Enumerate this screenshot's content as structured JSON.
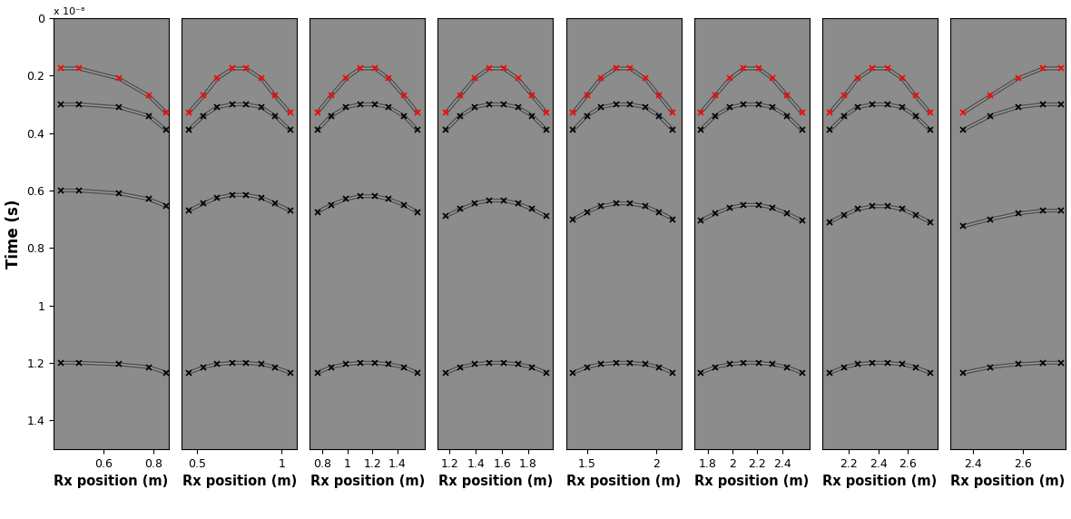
{
  "chart_data": [
    {
      "type": "scatter",
      "y_label": "Time (s)",
      "x_label": "Rx position (m)",
      "annotations": [
        "x 10⁻⁸"
      ],
      "xlim": [
        0.4,
        0.86
      ],
      "xticks": [
        0.6,
        0.8
      ],
      "ylim": [
        1.5,
        0
      ],
      "yticks": [
        0,
        0.2,
        0.4,
        0.6,
        0.8,
        1,
        1.2,
        1.4
      ],
      "series": [
        {
          "color": "#ff0000",
          "marker": "x",
          "x": [
            0.43,
            0.5,
            0.66,
            0.78,
            0.85
          ],
          "values": [
            0.175,
            0.175,
            0.21,
            0.27,
            0.33
          ]
        },
        {
          "color": "#000000",
          "marker": "x",
          "x": [
            0.43,
            0.5,
            0.66,
            0.78,
            0.85
          ],
          "values": [
            0.3,
            0.3,
            0.31,
            0.34,
            0.39
          ]
        },
        {
          "color": "#000000",
          "marker": "x",
          "x": [
            0.43,
            0.5,
            0.66,
            0.78,
            0.85
          ],
          "values": [
            0.6,
            0.6,
            0.61,
            0.63,
            0.655
          ]
        },
        {
          "color": "#000000",
          "marker": "x",
          "x": [
            0.43,
            0.5,
            0.66,
            0.78,
            0.85
          ],
          "values": [
            1.2,
            1.2,
            1.205,
            1.215,
            1.235
          ]
        }
      ]
    },
    {
      "type": "scatter",
      "x_label": "Rx position (m)",
      "tick_labels": "x",
      "xlim": [
        0.41,
        1.09
      ],
      "xticks": [
        0.5,
        1
      ],
      "ylim": [
        1.5,
        0
      ],
      "series": [
        {
          "color": "#ff0000",
          "marker": "x",
          "x": [
            0.45,
            0.54,
            0.62,
            0.71,
            0.79,
            0.88,
            0.96,
            1.05
          ],
          "values": [
            0.33,
            0.27,
            0.21,
            0.175,
            0.175,
            0.21,
            0.27,
            0.33
          ]
        },
        {
          "color": "#000000",
          "marker": "x",
          "x": [
            0.45,
            0.54,
            0.62,
            0.71,
            0.79,
            0.88,
            0.96,
            1.05
          ],
          "values": [
            0.39,
            0.34,
            0.31,
            0.3,
            0.3,
            0.31,
            0.34,
            0.39
          ]
        },
        {
          "color": "#000000",
          "marker": "x",
          "x": [
            0.45,
            0.54,
            0.62,
            0.71,
            0.79,
            0.88,
            0.96,
            1.05
          ],
          "values": [
            0.67,
            0.645,
            0.625,
            0.615,
            0.615,
            0.625,
            0.645,
            0.67
          ]
        },
        {
          "color": "#000000",
          "marker": "x",
          "x": [
            0.45,
            0.54,
            0.62,
            0.71,
            0.79,
            0.88,
            0.96,
            1.05
          ],
          "values": [
            1.235,
            1.215,
            1.205,
            1.2,
            1.2,
            1.205,
            1.215,
            1.235
          ]
        }
      ]
    },
    {
      "type": "scatter",
      "x_label": "Rx position (m)",
      "tick_labels": "x",
      "xlim": [
        0.7,
        1.62
      ],
      "xticks": [
        0.8,
        1,
        1.2,
        1.4
      ],
      "ylim": [
        1.5,
        0
      ],
      "series": [
        {
          "color": "#ff0000",
          "marker": "x",
          "x": [
            0.76,
            0.87,
            0.99,
            1.1,
            1.22,
            1.33,
            1.45,
            1.56
          ],
          "values": [
            0.33,
            0.27,
            0.21,
            0.175,
            0.175,
            0.21,
            0.27,
            0.33
          ]
        },
        {
          "color": "#000000",
          "marker": "x",
          "x": [
            0.76,
            0.87,
            0.99,
            1.1,
            1.22,
            1.33,
            1.45,
            1.56
          ],
          "values": [
            0.39,
            0.34,
            0.31,
            0.3,
            0.3,
            0.31,
            0.34,
            0.39
          ]
        },
        {
          "color": "#000000",
          "marker": "x",
          "x": [
            0.76,
            0.87,
            0.99,
            1.1,
            1.22,
            1.33,
            1.45,
            1.56
          ],
          "values": [
            0.675,
            0.65,
            0.63,
            0.62,
            0.62,
            0.63,
            0.65,
            0.675
          ]
        },
        {
          "color": "#000000",
          "marker": "x",
          "x": [
            0.76,
            0.87,
            0.99,
            1.1,
            1.22,
            1.33,
            1.45,
            1.56
          ],
          "values": [
            1.235,
            1.215,
            1.205,
            1.2,
            1.2,
            1.205,
            1.215,
            1.235
          ]
        }
      ]
    },
    {
      "type": "scatter",
      "x_label": "Rx position (m)",
      "tick_labels": "x",
      "xlim": [
        1.11,
        1.99
      ],
      "xticks": [
        1.2,
        1.4,
        1.6,
        1.8
      ],
      "ylim": [
        1.5,
        0
      ],
      "series": [
        {
          "color": "#ff0000",
          "marker": "x",
          "x": [
            1.17,
            1.28,
            1.39,
            1.5,
            1.61,
            1.72,
            1.83,
            1.94
          ],
          "values": [
            0.33,
            0.27,
            0.21,
            0.175,
            0.175,
            0.21,
            0.27,
            0.33
          ]
        },
        {
          "color": "#000000",
          "marker": "x",
          "x": [
            1.17,
            1.28,
            1.39,
            1.5,
            1.61,
            1.72,
            1.83,
            1.94
          ],
          "values": [
            0.39,
            0.34,
            0.31,
            0.3,
            0.3,
            0.31,
            0.34,
            0.39
          ]
        },
        {
          "color": "#000000",
          "marker": "x",
          "x": [
            1.17,
            1.28,
            1.39,
            1.5,
            1.61,
            1.72,
            1.83,
            1.94
          ],
          "values": [
            0.69,
            0.665,
            0.645,
            0.635,
            0.635,
            0.645,
            0.665,
            0.69
          ]
        },
        {
          "color": "#000000",
          "marker": "x",
          "x": [
            1.17,
            1.28,
            1.39,
            1.5,
            1.61,
            1.72,
            1.83,
            1.94
          ],
          "values": [
            1.235,
            1.215,
            1.205,
            1.2,
            1.2,
            1.205,
            1.215,
            1.235
          ]
        }
      ]
    },
    {
      "type": "scatter",
      "x_label": "Rx position (m)",
      "tick_labels": "x",
      "xlim": [
        1.35,
        2.18
      ],
      "xticks": [
        1.5,
        2
      ],
      "ylim": [
        1.5,
        0
      ],
      "series": [
        {
          "color": "#ff0000",
          "marker": "x",
          "x": [
            1.4,
            1.5,
            1.6,
            1.71,
            1.81,
            1.92,
            2.02,
            2.12
          ],
          "values": [
            0.33,
            0.27,
            0.21,
            0.175,
            0.175,
            0.21,
            0.27,
            0.33
          ]
        },
        {
          "color": "#000000",
          "marker": "x",
          "x": [
            1.4,
            1.5,
            1.6,
            1.71,
            1.81,
            1.92,
            2.02,
            2.12
          ],
          "values": [
            0.39,
            0.34,
            0.31,
            0.3,
            0.3,
            0.31,
            0.34,
            0.39
          ]
        },
        {
          "color": "#000000",
          "marker": "x",
          "x": [
            1.4,
            1.5,
            1.6,
            1.71,
            1.81,
            1.92,
            2.02,
            2.12
          ],
          "values": [
            0.7,
            0.675,
            0.655,
            0.645,
            0.645,
            0.655,
            0.675,
            0.7
          ]
        },
        {
          "color": "#000000",
          "marker": "x",
          "x": [
            1.4,
            1.5,
            1.6,
            1.71,
            1.81,
            1.92,
            2.02,
            2.12
          ],
          "values": [
            1.235,
            1.215,
            1.205,
            1.2,
            1.2,
            1.205,
            1.215,
            1.235
          ]
        }
      ]
    },
    {
      "type": "scatter",
      "x_label": "Rx position (m)",
      "tick_labels": "x",
      "xlim": [
        1.69,
        2.62
      ],
      "xticks": [
        1.8,
        2,
        2.2,
        2.4
      ],
      "ylim": [
        1.5,
        0
      ],
      "series": [
        {
          "color": "#ff0000",
          "marker": "x",
          "x": [
            1.74,
            1.86,
            1.98,
            2.09,
            2.21,
            2.32,
            2.44,
            2.56
          ],
          "values": [
            0.33,
            0.27,
            0.21,
            0.175,
            0.175,
            0.21,
            0.27,
            0.33
          ]
        },
        {
          "color": "#000000",
          "marker": "x",
          "x": [
            1.74,
            1.86,
            1.98,
            2.09,
            2.21,
            2.32,
            2.44,
            2.56
          ],
          "values": [
            0.39,
            0.34,
            0.31,
            0.3,
            0.3,
            0.31,
            0.34,
            0.39
          ]
        },
        {
          "color": "#000000",
          "marker": "x",
          "x": [
            1.74,
            1.86,
            1.98,
            2.09,
            2.21,
            2.32,
            2.44,
            2.56
          ],
          "values": [
            0.705,
            0.68,
            0.66,
            0.65,
            0.65,
            0.66,
            0.68,
            0.705
          ]
        },
        {
          "color": "#000000",
          "marker": "x",
          "x": [
            1.74,
            1.86,
            1.98,
            2.09,
            2.21,
            2.32,
            2.44,
            2.56
          ],
          "values": [
            1.235,
            1.215,
            1.205,
            1.2,
            1.2,
            1.205,
            1.215,
            1.235
          ]
        }
      ]
    },
    {
      "type": "scatter",
      "x_label": "Rx position (m)",
      "tick_labels": "x",
      "xlim": [
        2.02,
        2.8
      ],
      "xticks": [
        2.2,
        2.4,
        2.6
      ],
      "ylim": [
        1.5,
        0
      ],
      "series": [
        {
          "color": "#ff0000",
          "marker": "x",
          "x": [
            2.07,
            2.17,
            2.26,
            2.36,
            2.46,
            2.56,
            2.65,
            2.75
          ],
          "values": [
            0.33,
            0.27,
            0.21,
            0.175,
            0.175,
            0.21,
            0.27,
            0.33
          ]
        },
        {
          "color": "#000000",
          "marker": "x",
          "x": [
            2.07,
            2.17,
            2.26,
            2.36,
            2.46,
            2.56,
            2.65,
            2.75
          ],
          "values": [
            0.39,
            0.34,
            0.31,
            0.3,
            0.3,
            0.31,
            0.34,
            0.39
          ]
        },
        {
          "color": "#000000",
          "marker": "x",
          "x": [
            2.07,
            2.17,
            2.26,
            2.36,
            2.46,
            2.56,
            2.65,
            2.75
          ],
          "values": [
            0.71,
            0.685,
            0.665,
            0.655,
            0.655,
            0.665,
            0.685,
            0.71
          ]
        },
        {
          "color": "#000000",
          "marker": "x",
          "x": [
            2.07,
            2.17,
            2.26,
            2.36,
            2.46,
            2.56,
            2.65,
            2.75
          ],
          "values": [
            1.235,
            1.215,
            1.205,
            1.2,
            1.2,
            1.205,
            1.215,
            1.235
          ]
        }
      ]
    },
    {
      "type": "scatter",
      "x_label": "Rx position (m)",
      "tick_labels": "x",
      "xlim": [
        2.31,
        2.77
      ],
      "xticks": [
        2.4,
        2.6
      ],
      "ylim": [
        1.5,
        0
      ],
      "series": [
        {
          "color": "#ff0000",
          "marker": "x",
          "x": [
            2.36,
            2.47,
            2.58,
            2.68,
            2.75
          ],
          "values": [
            0.33,
            0.27,
            0.21,
            0.175,
            0.175
          ]
        },
        {
          "color": "#000000",
          "marker": "x",
          "x": [
            2.36,
            2.47,
            2.58,
            2.68,
            2.75
          ],
          "values": [
            0.39,
            0.34,
            0.31,
            0.3,
            0.3
          ]
        },
        {
          "color": "#000000",
          "marker": "x",
          "x": [
            2.36,
            2.47,
            2.58,
            2.68,
            2.75
          ],
          "values": [
            0.725,
            0.7,
            0.68,
            0.67,
            0.67
          ]
        },
        {
          "color": "#000000",
          "marker": "x",
          "x": [
            2.36,
            2.47,
            2.58,
            2.68,
            2.75
          ],
          "values": [
            1.235,
            1.215,
            1.205,
            1.2,
            1.2
          ]
        }
      ]
    }
  ]
}
